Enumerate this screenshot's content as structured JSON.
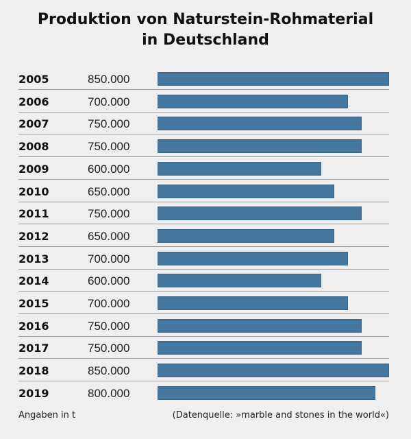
{
  "chart_data": {
    "type": "bar",
    "orientation": "horizontal",
    "title": "Produktion von Naturstein-Rohmaterial in Deutschland",
    "title_lines": [
      "Produktion von Naturstein-Rohmaterial",
      "in Deutschland"
    ],
    "categories": [
      "2005",
      "2006",
      "2007",
      "2008",
      "2009",
      "2010",
      "2011",
      "2012",
      "2013",
      "2014",
      "2015",
      "2016",
      "2017",
      "2018",
      "2019"
    ],
    "values": [
      850000,
      700000,
      750000,
      750000,
      600000,
      650000,
      750000,
      650000,
      700000,
      600000,
      700000,
      750000,
      750000,
      850000,
      800000
    ],
    "value_labels": [
      "850.000",
      "700.000",
      "750.000",
      "750.000",
      "600.000",
      "650.000",
      "750.000",
      "650.000",
      "700.000",
      "600.000",
      "700.000",
      "750.000",
      "750.000",
      "850.000",
      "800.000"
    ],
    "xlim": [
      0,
      850000
    ],
    "unit_note": "Angaben in t",
    "source": "(Datenquelle: »marble and stones in the world«)",
    "bar_color": "#45779f",
    "background": "#efefef"
  }
}
